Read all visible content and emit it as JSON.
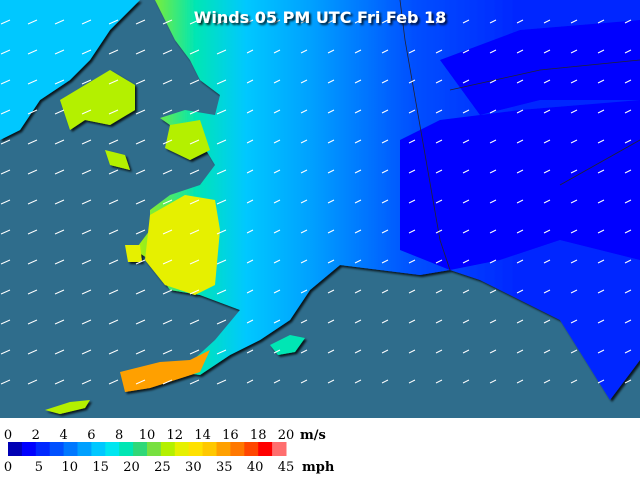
{
  "header": {
    "title": "Winds 05 PM UTC Fri Feb 18"
  },
  "legend": {
    "colors": [
      "#0000b4",
      "#0000ff",
      "#0028ff",
      "#0050ff",
      "#0078ff",
      "#00a0ff",
      "#00c8ff",
      "#00e6f0",
      "#00e6b4",
      "#30d878",
      "#78e040",
      "#b4f000",
      "#e6f000",
      "#ffe100",
      "#ffc800",
      "#ffa000",
      "#ff7800",
      "#ff4600",
      "#ff0000",
      "#ff6e6e"
    ],
    "ms_ticks": [
      0,
      2,
      4,
      6,
      8,
      10,
      12,
      14,
      16,
      18,
      20
    ],
    "ms_unit": "m/s",
    "mph_ticks": [
      0,
      5,
      10,
      15,
      20,
      25,
      30,
      35,
      40,
      45
    ],
    "mph_unit": "mph"
  }
}
